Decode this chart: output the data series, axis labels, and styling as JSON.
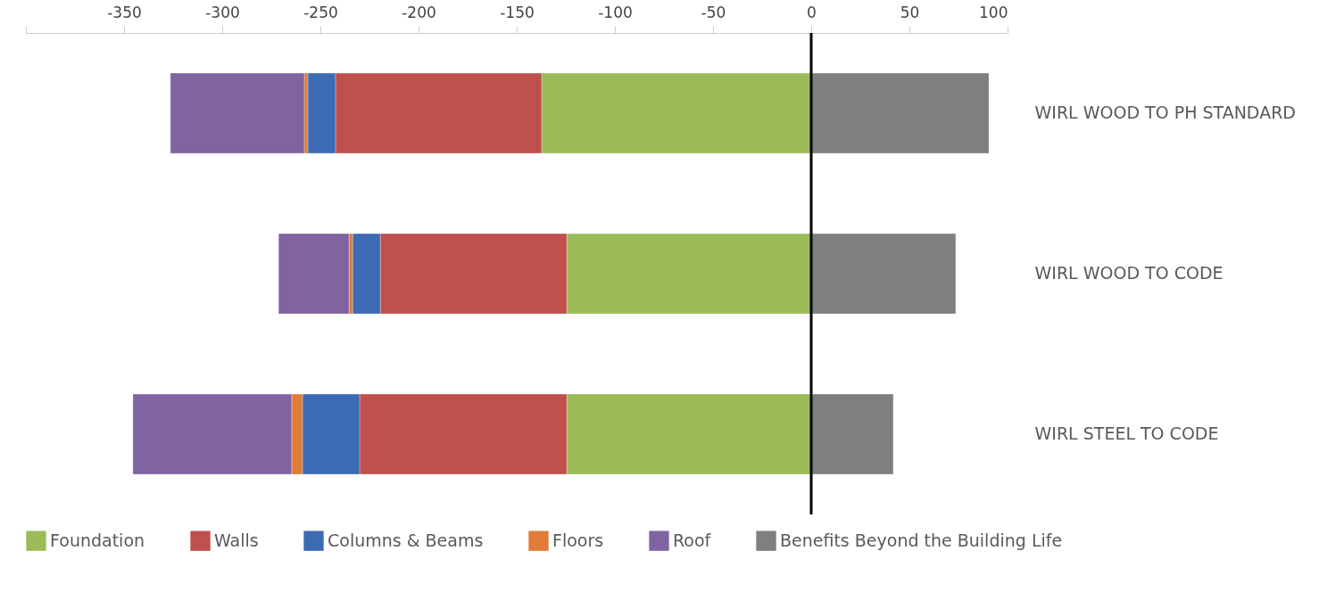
{
  "chart_data": {
    "type": "bar",
    "orientation": "horizontal",
    "stacked": true,
    "categories": [
      "WIRL WOOD TO PH STANDARD",
      "WIRL WOOD TO CODE",
      "WIRL STEEL TO CODE"
    ],
    "series": [
      {
        "name": "Foundation",
        "color": "#9bbb59",
        "values": [
          -137.3,
          -124.5,
          -124.5
        ]
      },
      {
        "name": "Walls",
        "color": "#c0504d",
        "values": [
          -105,
          -95,
          -105.5
        ]
      },
      {
        "name": "Columns & Beams",
        "color": "#3d6bb3",
        "values": [
          -14.1,
          -14.1,
          -29.1
        ]
      },
      {
        "name": "Floors",
        "color": "#e07b39",
        "values": [
          -1.8,
          -1.8,
          -5.5
        ]
      },
      {
        "name": "Roof",
        "color": "#8064a2",
        "values": [
          -68.2,
          -35.9,
          -80.9
        ]
      },
      {
        "name": "Benefits Beyond the Building Life",
        "color": "#7f7e80",
        "values": [
          90.5,
          73.6,
          41.8
        ]
      }
    ],
    "xlim": [
      -400,
      100
    ],
    "xticks": [
      {
        "value": -400,
        "label": null
      },
      -350,
      -300,
      -250,
      -200,
      -150,
      -100,
      -50,
      0,
      50,
      100
    ],
    "ref_lines": [
      {
        "axis": "x",
        "value": 0,
        "color": "#000000"
      }
    ],
    "grid": false,
    "legend": "bottom"
  }
}
